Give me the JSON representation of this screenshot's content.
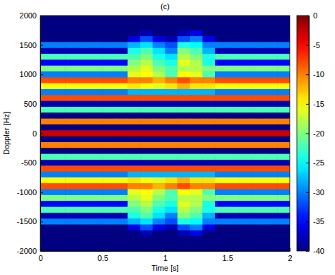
{
  "chart_data": {
    "type": "heatmap",
    "title": "(c)",
    "x_label": "Time [s]",
    "y_label": "Doppler [Hz]",
    "xlim": [
      0,
      2
    ],
    "ylim": [
      -2000,
      2000
    ],
    "xticks": [
      0,
      0.5,
      1,
      1.5,
      2
    ],
    "yticks": [
      -2000,
      -1500,
      -1000,
      -500,
      0,
      500,
      1000,
      1500,
      2000
    ],
    "color_range": [
      -40,
      0
    ],
    "color_ticks": [
      0,
      -5,
      -10,
      -15,
      -20,
      -25,
      -30,
      -35,
      -40
    ],
    "x": [
      0.05,
      0.15,
      0.25,
      0.35,
      0.45,
      0.55,
      0.65,
      0.75,
      0.85,
      0.95,
      1.05,
      1.15,
      1.25,
      1.35,
      1.45,
      1.55,
      1.65,
      1.75,
      1.85,
      1.95
    ],
    "y": [
      2000,
      1900,
      1800,
      1700,
      1600,
      1500,
      1400,
      1300,
      1200,
      1100,
      1000,
      900,
      800,
      700,
      600,
      500,
      400,
      300,
      200,
      100,
      0,
      -100,
      -200,
      -300,
      -400,
      -500,
      -600,
      -700,
      -800,
      -900,
      -1000,
      -1100,
      -1200,
      -1300,
      -1400,
      -1500,
      -1600,
      -1700,
      -1800,
      -1900,
      -2000
    ],
    "values": [
      [
        -40,
        -40,
        -40,
        -40,
        -40,
        -40,
        -40,
        -40,
        -40,
        -40,
        -40,
        -40,
        -40,
        -40,
        -40,
        -40,
        -40,
        -40,
        -40,
        -40
      ],
      [
        -40,
        -40,
        -40,
        -40,
        -40,
        -40,
        -40,
        -40,
        -40,
        -40,
        -40,
        -40,
        -40,
        -40,
        -40,
        -40,
        -40,
        -40,
        -40,
        -40
      ],
      [
        -40,
        -40,
        -40,
        -40,
        -40,
        -40,
        -40,
        -40,
        -40,
        -40,
        -40,
        -40,
        -40,
        -40,
        -40,
        -40,
        -40,
        -40,
        -40,
        -40
      ],
      [
        -40,
        -40,
        -40,
        -40,
        -40,
        -40,
        -40,
        -40,
        -38,
        -40,
        -40,
        -38,
        -36,
        -40,
        -40,
        -40,
        -40,
        -40,
        -40,
        -40
      ],
      [
        -40,
        -40,
        -40,
        -40,
        -40,
        -40,
        -40,
        -36,
        -32,
        -36,
        -38,
        -32,
        -30,
        -36,
        -40,
        -40,
        -40,
        -40,
        -40,
        -40
      ],
      [
        -30,
        -30,
        -30,
        -30,
        -30,
        -30,
        -30,
        -28,
        -26,
        -30,
        -32,
        -24,
        -25,
        -30,
        -30,
        -30,
        -30,
        -30,
        -30,
        -30
      ],
      [
        -38,
        -38,
        -38,
        -38,
        -38,
        -38,
        -38,
        -24,
        -22,
        -26,
        -30,
        -20,
        -22,
        -28,
        -38,
        -38,
        -38,
        -38,
        -38,
        -38
      ],
      [
        -22,
        -22,
        -22,
        -22,
        -22,
        -22,
        -22,
        -22,
        -20,
        -24,
        -26,
        -18,
        -20,
        -24,
        -22,
        -22,
        -22,
        -22,
        -22,
        -22
      ],
      [
        -35,
        -35,
        -35,
        -35,
        -35,
        -35,
        -35,
        -20,
        -18,
        -22,
        -24,
        -16,
        -18,
        -24,
        -35,
        -35,
        -35,
        -35,
        -35,
        -35
      ],
      [
        -20,
        -20,
        -20,
        -20,
        -20,
        -20,
        -20,
        -18,
        -16,
        -20,
        -22,
        -18,
        -18,
        -20,
        -20,
        -20,
        -20,
        -20,
        -20,
        -20
      ],
      [
        -30,
        -30,
        -30,
        -30,
        -30,
        -30,
        -30,
        -16,
        -15,
        -18,
        -22,
        -15,
        -16,
        -22,
        -30,
        -30,
        -30,
        -30,
        -30,
        -30
      ],
      [
        -8,
        -8,
        -8,
        -8,
        -8,
        -8,
        -8,
        -10,
        -10,
        -12,
        -10,
        -8,
        -10,
        -10,
        -8,
        -8,
        -8,
        -8,
        -8,
        -8
      ],
      [
        -15,
        -15,
        -15,
        -15,
        -15,
        -15,
        -15,
        -14,
        -15,
        -16,
        -14,
        -12,
        -14,
        -14,
        -15,
        -15,
        -15,
        -15,
        -15,
        -15
      ],
      [
        -30,
        -30,
        -30,
        -30,
        -30,
        -30,
        -30,
        -28,
        -28,
        -28,
        -28,
        -28,
        -28,
        -28,
        -30,
        -30,
        -30,
        -30,
        -30,
        -30
      ],
      [
        -8,
        -8,
        -8,
        -8,
        -8,
        -8,
        -8,
        -8,
        -8,
        -8,
        -8,
        -8,
        -8,
        -8,
        -8,
        -8,
        -8,
        -8,
        -8,
        -8
      ],
      [
        -38,
        -38,
        -38,
        -38,
        -38,
        -38,
        -38,
        -38,
        -38,
        -38,
        -38,
        -38,
        -38,
        -38,
        -38,
        -38,
        -38,
        -38,
        -38,
        -38
      ],
      [
        -22,
        -22,
        -22,
        -22,
        -22,
        -22,
        -22,
        -22,
        -22,
        -22,
        -22,
        -22,
        -22,
        -22,
        -22,
        -22,
        -22,
        -22,
        -22,
        -22
      ],
      [
        -40,
        -40,
        -40,
        -40,
        -40,
        -40,
        -40,
        -40,
        -40,
        -40,
        -40,
        -40,
        -40,
        -40,
        -40,
        -40,
        -40,
        -40,
        -40,
        -40
      ],
      [
        -10,
        -10,
        -10,
        -10,
        -10,
        -10,
        -10,
        -10,
        -10,
        -10,
        -10,
        -10,
        -10,
        -10,
        -10,
        -10,
        -10,
        -10,
        -10,
        -10
      ],
      [
        -40,
        -40,
        -40,
        -40,
        -40,
        -40,
        -40,
        -40,
        -40,
        -40,
        -40,
        -40,
        -40,
        -40,
        -40,
        -40,
        -40,
        -40,
        -40,
        -40
      ],
      [
        -3,
        -3,
        -3,
        -3,
        -3,
        -3,
        -3,
        -3,
        -3,
        -3,
        -3,
        -3,
        -3,
        -3,
        -3,
        -3,
        -3,
        -3,
        -3,
        -3
      ],
      [
        -40,
        -40,
        -40,
        -40,
        -40,
        -40,
        -40,
        -40,
        -40,
        -40,
        -40,
        -40,
        -40,
        -40,
        -40,
        -40,
        -40,
        -40,
        -40,
        -40
      ],
      [
        -10,
        -10,
        -10,
        -10,
        -10,
        -10,
        -10,
        -10,
        -10,
        -10,
        -10,
        -10,
        -10,
        -10,
        -10,
        -10,
        -10,
        -10,
        -10,
        -10
      ],
      [
        -40,
        -40,
        -40,
        -40,
        -40,
        -40,
        -40,
        -40,
        -40,
        -40,
        -40,
        -40,
        -40,
        -40,
        -40,
        -40,
        -40,
        -40,
        -40,
        -40
      ],
      [
        -22,
        -22,
        -22,
        -22,
        -22,
        -22,
        -22,
        -22,
        -22,
        -22,
        -22,
        -22,
        -22,
        -22,
        -22,
        -22,
        -22,
        -22,
        -22,
        -22
      ],
      [
        -38,
        -38,
        -38,
        -38,
        -38,
        -38,
        -38,
        -38,
        -38,
        -38,
        -38,
        -38,
        -38,
        -38,
        -38,
        -38,
        -38,
        -38,
        -38,
        -38
      ],
      [
        -8,
        -8,
        -8,
        -8,
        -8,
        -8,
        -8,
        -8,
        -8,
        -8,
        -8,
        -8,
        -8,
        -8,
        -8,
        -8,
        -8,
        -8,
        -8,
        -8
      ],
      [
        -30,
        -30,
        -30,
        -30,
        -30,
        -30,
        -30,
        -28,
        -28,
        -28,
        -28,
        -28,
        -28,
        -28,
        -30,
        -30,
        -30,
        -30,
        -30,
        -30
      ],
      [
        -15,
        -15,
        -15,
        -15,
        -15,
        -15,
        -15,
        -14,
        -15,
        -16,
        -14,
        -12,
        -14,
        -14,
        -15,
        -15,
        -15,
        -15,
        -15,
        -15
      ],
      [
        -8,
        -8,
        -8,
        -8,
        -8,
        -8,
        -8,
        -10,
        -10,
        -12,
        -10,
        -8,
        -10,
        -10,
        -8,
        -8,
        -8,
        -8,
        -8,
        -8
      ],
      [
        -30,
        -30,
        -30,
        -30,
        -30,
        -30,
        -30,
        -16,
        -15,
        -18,
        -22,
        -15,
        -16,
        -22,
        -30,
        -30,
        -30,
        -30,
        -30,
        -30
      ],
      [
        -20,
        -20,
        -20,
        -20,
        -20,
        -20,
        -20,
        -18,
        -16,
        -20,
        -22,
        -18,
        -18,
        -20,
        -20,
        -20,
        -20,
        -20,
        -20,
        -20
      ],
      [
        -35,
        -35,
        -35,
        -35,
        -35,
        -35,
        -35,
        -20,
        -18,
        -22,
        -24,
        -16,
        -18,
        -24,
        -35,
        -35,
        -35,
        -35,
        -35,
        -35
      ],
      [
        -22,
        -22,
        -22,
        -22,
        -22,
        -22,
        -22,
        -22,
        -20,
        -24,
        -26,
        -18,
        -20,
        -24,
        -22,
        -22,
        -22,
        -22,
        -22,
        -22
      ],
      [
        -38,
        -38,
        -38,
        -38,
        -38,
        -38,
        -38,
        -24,
        -22,
        -26,
        -30,
        -20,
        -22,
        -28,
        -38,
        -38,
        -38,
        -38,
        -38,
        -38
      ],
      [
        -30,
        -30,
        -30,
        -30,
        -30,
        -30,
        -30,
        -28,
        -26,
        -30,
        -32,
        -24,
        -25,
        -30,
        -30,
        -30,
        -30,
        -30,
        -30,
        -30
      ],
      [
        -40,
        -40,
        -40,
        -40,
        -40,
        -40,
        -40,
        -36,
        -32,
        -36,
        -38,
        -32,
        -30,
        -36,
        -40,
        -40,
        -40,
        -40,
        -40,
        -40
      ],
      [
        -40,
        -40,
        -40,
        -40,
        -40,
        -40,
        -40,
        -40,
        -38,
        -40,
        -40,
        -38,
        -36,
        -40,
        -40,
        -40,
        -40,
        -40,
        -40,
        -40
      ],
      [
        -40,
        -40,
        -40,
        -40,
        -40,
        -40,
        -40,
        -40,
        -40,
        -40,
        -40,
        -40,
        -40,
        -40,
        -40,
        -40,
        -40,
        -40,
        -40,
        -40
      ],
      [
        -40,
        -40,
        -40,
        -40,
        -40,
        -40,
        -40,
        -40,
        -40,
        -40,
        -40,
        -40,
        -40,
        -40,
        -40,
        -40,
        -40,
        -40,
        -40,
        -40
      ],
      [
        -40,
        -40,
        -40,
        -40,
        -40,
        -40,
        -40,
        -40,
        -40,
        -40,
        -40,
        -40,
        -40,
        -40,
        -40,
        -40,
        -40,
        -40,
        -40,
        -40
      ]
    ]
  }
}
